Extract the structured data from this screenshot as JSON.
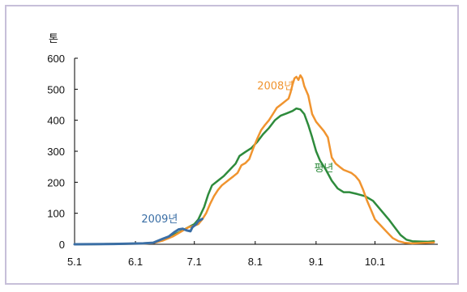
{
  "chart_data": {
    "type": "line",
    "ylabel": "톤",
    "ylim": [
      0,
      600
    ],
    "yticks": [
      0,
      100,
      200,
      300,
      400,
      500,
      600
    ],
    "xticks": [
      "5.1",
      "6.1",
      "7.1",
      "8.1",
      "9.1",
      "10.1"
    ],
    "xlim_days": [
      0,
      185
    ],
    "grid": false,
    "legend": "inline labels",
    "series": [
      {
        "name": "평년",
        "color": "#2e8b3c",
        "points": [
          [
            0,
            0
          ],
          [
            20,
            1
          ],
          [
            35,
            3
          ],
          [
            40,
            5
          ],
          [
            45,
            15
          ],
          [
            48,
            22
          ],
          [
            52,
            35
          ],
          [
            55,
            45
          ],
          [
            58,
            55
          ],
          [
            61,
            65
          ],
          [
            63,
            80
          ],
          [
            66,
            120
          ],
          [
            68,
            160
          ],
          [
            70,
            190
          ],
          [
            73,
            205
          ],
          [
            76,
            220
          ],
          [
            79,
            240
          ],
          [
            82,
            260
          ],
          [
            84,
            285
          ],
          [
            87,
            298
          ],
          [
            90,
            310
          ],
          [
            93,
            330
          ],
          [
            96,
            355
          ],
          [
            99,
            375
          ],
          [
            102,
            400
          ],
          [
            105,
            415
          ],
          [
            108,
            422
          ],
          [
            111,
            430
          ],
          [
            113,
            438
          ],
          [
            115,
            435
          ],
          [
            117,
            420
          ],
          [
            119,
            385
          ],
          [
            121,
            345
          ],
          [
            123,
            300
          ],
          [
            125,
            270
          ],
          [
            128,
            240
          ],
          [
            131,
            205
          ],
          [
            134,
            180
          ],
          [
            137,
            168
          ],
          [
            140,
            168
          ],
          [
            144,
            162
          ],
          [
            148,
            155
          ],
          [
            152,
            140
          ],
          [
            156,
            110
          ],
          [
            160,
            80
          ],
          [
            163,
            55
          ],
          [
            166,
            30
          ],
          [
            169,
            15
          ],
          [
            172,
            10
          ],
          [
            176,
            9
          ],
          [
            180,
            8
          ],
          [
            183,
            10
          ]
        ]
      },
      {
        "name": "2008년",
        "color": "#f0942f",
        "points": [
          [
            0,
            0
          ],
          [
            20,
            1
          ],
          [
            35,
            2
          ],
          [
            40,
            4
          ],
          [
            45,
            12
          ],
          [
            50,
            25
          ],
          [
            54,
            40
          ],
          [
            58,
            55
          ],
          [
            61,
            60
          ],
          [
            63,
            65
          ],
          [
            65,
            80
          ],
          [
            67,
            100
          ],
          [
            69,
            130
          ],
          [
            71,
            155
          ],
          [
            73,
            175
          ],
          [
            75,
            190
          ],
          [
            77,
            200
          ],
          [
            79,
            210
          ],
          [
            81,
            220
          ],
          [
            83,
            230
          ],
          [
            85,
            255
          ],
          [
            87,
            262
          ],
          [
            89,
            275
          ],
          [
            91,
            310
          ],
          [
            93,
            340
          ],
          [
            95,
            368
          ],
          [
            97,
            385
          ],
          [
            99,
            400
          ],
          [
            101,
            420
          ],
          [
            103,
            440
          ],
          [
            105,
            450
          ],
          [
            107,
            460
          ],
          [
            109,
            470
          ],
          [
            110,
            490
          ],
          [
            111,
            515
          ],
          [
            112,
            535
          ],
          [
            113,
            540
          ],
          [
            114,
            530
          ],
          [
            115,
            545
          ],
          [
            116,
            535
          ],
          [
            117,
            510
          ],
          [
            119,
            480
          ],
          [
            121,
            420
          ],
          [
            123,
            395
          ],
          [
            125,
            380
          ],
          [
            127,
            365
          ],
          [
            129,
            345
          ],
          [
            131,
            280
          ],
          [
            133,
            260
          ],
          [
            135,
            250
          ],
          [
            137,
            240
          ],
          [
            139,
            235
          ],
          [
            141,
            230
          ],
          [
            143,
            220
          ],
          [
            145,
            205
          ],
          [
            147,
            175
          ],
          [
            149,
            140
          ],
          [
            151,
            110
          ],
          [
            153,
            80
          ],
          [
            156,
            60
          ],
          [
            159,
            40
          ],
          [
            162,
            20
          ],
          [
            165,
            10
          ],
          [
            168,
            5
          ],
          [
            172,
            3
          ],
          [
            176,
            4
          ],
          [
            180,
            5
          ],
          [
            183,
            6
          ]
        ]
      },
      {
        "name": "2009년",
        "color": "#3a6ea5",
        "points": [
          [
            0,
            0
          ],
          [
            20,
            1
          ],
          [
            35,
            3
          ],
          [
            40,
            5
          ],
          [
            45,
            18
          ],
          [
            48,
            25
          ],
          [
            51,
            40
          ],
          [
            53,
            48
          ],
          [
            55,
            50
          ],
          [
            57,
            45
          ],
          [
            59,
            42
          ],
          [
            60,
            55
          ],
          [
            62,
            65
          ],
          [
            63,
            75
          ],
          [
            64,
            78
          ],
          [
            65,
            82
          ]
        ]
      }
    ]
  }
}
